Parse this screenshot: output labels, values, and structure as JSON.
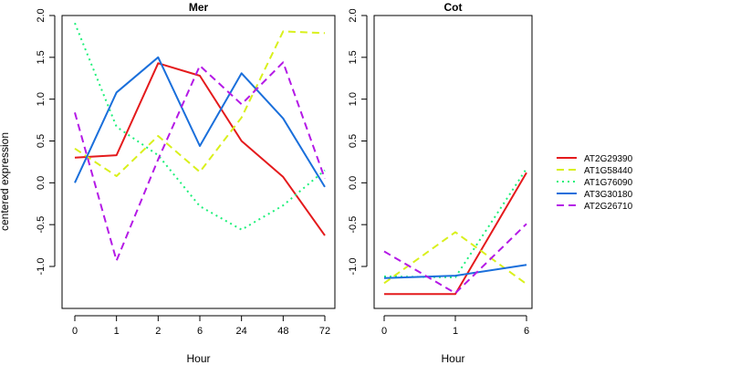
{
  "figure": {
    "ylabel": "centered expression"
  },
  "legend": {
    "placement": "right",
    "items": [
      {
        "name": "AT2G29390",
        "color": "#e41a1c",
        "dash": "solid"
      },
      {
        "name": "AT1G58440",
        "color": "#d9f01c",
        "dash": "dashed"
      },
      {
        "name": "AT1G76090",
        "color": "#1ef07a",
        "dash": "dotted"
      },
      {
        "name": "AT3G30180",
        "color": "#1a6fdb",
        "dash": "solid"
      },
      {
        "name": "AT2G26710",
        "color": "#b41ae6",
        "dash": "dashed"
      }
    ]
  },
  "chart_data": [
    {
      "type": "line",
      "title": "Mer",
      "xlabel": "Hour",
      "ylabel": "centered expression",
      "categories": [
        "0",
        "1",
        "2",
        "6",
        "24",
        "48",
        "72"
      ],
      "ylim": [
        -1.5,
        2.0
      ],
      "yticks": [
        "-1.0",
        "-0.5",
        "0.0",
        "0.5",
        "1.0",
        "1.5",
        "2.0"
      ],
      "series": [
        {
          "name": "AT2G29390",
          "values": [
            0.3,
            0.33,
            1.43,
            1.28,
            0.5,
            0.07,
            -0.63
          ]
        },
        {
          "name": "AT1G58440",
          "values": [
            0.41,
            0.08,
            0.56,
            0.13,
            0.78,
            1.81,
            1.79
          ]
        },
        {
          "name": "AT1G76090",
          "values": [
            1.91,
            0.67,
            0.33,
            -0.28,
            -0.56,
            -0.27,
            0.15
          ]
        },
        {
          "name": "AT3G30180",
          "values": [
            0.0,
            1.08,
            1.5,
            0.44,
            1.31,
            0.77,
            -0.05
          ]
        },
        {
          "name": "AT2G26710",
          "values": [
            0.84,
            -0.93,
            0.28,
            1.4,
            0.94,
            1.44,
            0.05
          ]
        }
      ]
    },
    {
      "type": "line",
      "title": "Cot",
      "xlabel": "Hour",
      "categories": [
        "0",
        "1",
        "6"
      ],
      "ylim": [
        -1.5,
        2.0
      ],
      "yticks": [
        "-1.0",
        "-0.5",
        "0.0",
        "0.5",
        "1.0",
        "1.5",
        "2.0"
      ],
      "series": [
        {
          "name": "AT2G29390",
          "values": [
            -1.33,
            -1.33,
            0.12
          ]
        },
        {
          "name": "AT1G58440",
          "values": [
            -1.2,
            -0.59,
            -1.21
          ]
        },
        {
          "name": "AT1G76090",
          "values": [
            -1.12,
            -1.13,
            0.17
          ]
        },
        {
          "name": "AT3G30180",
          "values": [
            -1.14,
            -1.11,
            -0.98
          ]
        },
        {
          "name": "AT2G26710",
          "values": [
            -0.82,
            -1.32,
            -0.49
          ]
        }
      ]
    }
  ]
}
